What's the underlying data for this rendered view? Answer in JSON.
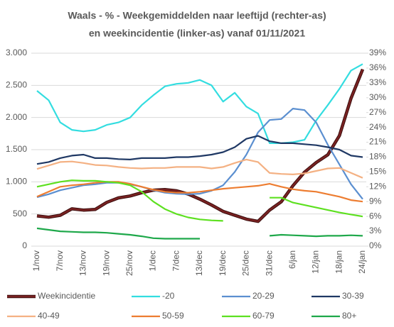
{
  "chart_data": {
    "type": "line",
    "title": [
      "Waals - % - Weekgemiddelden naar leeftijd (rechter-as)",
      "en weekincidentie  (linker-as) vanaf 01/11/2021"
    ],
    "categories": [
      "1/nov",
      null,
      "7/nov",
      null,
      "13/nov",
      null,
      "19/nov",
      null,
      "25/nov",
      null,
      "1/dec",
      null,
      "7/dec",
      null,
      "13/dec",
      null,
      "19/dec",
      null,
      "25/dec",
      null,
      "31/dec",
      null,
      "6/jan",
      null,
      "12/jan",
      null,
      "18/jan",
      null,
      "24/jan"
    ],
    "ylim": [
      0,
      3000
    ],
    "yticks": [
      0,
      500,
      {
        "value": 1000,
        "label": "1.000"
      },
      {
        "value": 1500,
        "label": "1.500"
      },
      {
        "value": 2000,
        "label": "2.000"
      },
      {
        "value": 2500,
        "label": "2.500"
      },
      {
        "value": 3000,
        "label": "3.000"
      }
    ],
    "y2lim": [
      0,
      39
    ],
    "y2ticks": [
      {
        "value": 0,
        "label": "0%"
      },
      {
        "value": 3,
        "label": "3%"
      },
      {
        "value": 6,
        "label": "6%"
      },
      {
        "value": 9,
        "label": "9%"
      },
      {
        "value": 12,
        "label": "12%"
      },
      {
        "value": 15,
        "label": "15%"
      },
      {
        "value": 18,
        "label": "18%"
      },
      {
        "value": 21,
        "label": "21%"
      },
      {
        "value": 24,
        "label": "24%"
      },
      {
        "value": 27,
        "label": "27%"
      },
      {
        "value": 30,
        "label": "30%"
      },
      {
        "value": 33,
        "label": "33%"
      },
      {
        "value": 36,
        "label": "36%"
      },
      {
        "value": 39,
        "label": "39%"
      }
    ],
    "grid": true,
    "legend": "bottom",
    "series": [
      {
        "name": "Weekincidentie",
        "color": "#7a2222",
        "values": [
          470,
          450,
          480,
          580,
          560,
          570,
          680,
          750,
          780,
          830,
          870,
          880,
          860,
          810,
          730,
          640,
          540,
          480,
          420,
          385,
          560,
          690,
          940,
          1150,
          1300,
          1420,
          1720,
          2300,
          2750
        ]
      },
      {
        "name": "-20",
        "color": "#33dde0",
        "axis": "y2",
        "values": [
          31.4,
          29.5,
          25,
          23.5,
          23.2,
          23.5,
          24.5,
          25,
          26,
          28.5,
          30.5,
          32.3,
          32.8,
          33,
          33.6,
          32.5,
          29.2,
          31,
          28.2,
          26.8,
          20.8,
          20.8,
          21,
          21.5,
          25.4,
          28.5,
          31.8,
          35.5,
          36.8
        ]
      },
      {
        "name": "20-29",
        "color": "#5b8fd0",
        "axis": "y2",
        "values": [
          9.9,
          10.5,
          11.3,
          11.8,
          12.3,
          12.5,
          12.8,
          12.8,
          12.5,
          12,
          11.3,
          10.8,
          10.6,
          10.5,
          10.6,
          11.2,
          12.3,
          15,
          18.5,
          23,
          25.5,
          25.7,
          27.8,
          27.5,
          25,
          20.5,
          16.5,
          12.5,
          9.5
        ]
      },
      {
        "name": "30-39",
        "color": "#1f3864",
        "axis": "y2",
        "values": [
          16.6,
          17,
          17.8,
          18.3,
          18.5,
          17.8,
          17.8,
          17.6,
          17.5,
          17.8,
          17.8,
          17.8,
          18,
          18,
          18.2,
          18.5,
          19,
          20,
          21.7,
          22.3,
          21.2,
          20.8,
          20.8,
          20.6,
          20.4,
          20,
          19.5,
          18.3,
          18
        ]
      },
      {
        "name": "40-49",
        "color": "#f4b183",
        "axis": "y2",
        "values": [
          15.6,
          16.3,
          17,
          17.1,
          16.8,
          16.4,
          16.3,
          16,
          15.8,
          15.7,
          15.8,
          15.8,
          16,
          16,
          16,
          15.7,
          16,
          16.8,
          17.5,
          17,
          14.8,
          14.6,
          14.5,
          14.7,
          15.2,
          15.7,
          15.8,
          14.8,
          13.8
        ]
      },
      {
        "name": "50-59",
        "color": "#ed7d31",
        "axis": "y2",
        "values": [
          10,
          11,
          12,
          12.3,
          12.5,
          12.8,
          13,
          13,
          12.6,
          12,
          11.4,
          11,
          10.8,
          10.8,
          11,
          11.3,
          11.6,
          11.8,
          12,
          12.2,
          12.6,
          12,
          11.5,
          11.2,
          11,
          10.5,
          10,
          9.3,
          9
        ]
      },
      {
        "name": "60-79",
        "color": "#5de020",
        "axis": "y2",
        "values": [
          12,
          12.5,
          13,
          13.3,
          13.2,
          13.2,
          13,
          12.8,
          12.3,
          11,
          9,
          7.5,
          6.5,
          5.8,
          5.4,
          5.2,
          5.1,
          null,
          null,
          null,
          9.8,
          9.8,
          8.8,
          8.3,
          7.8,
          7.3,
          6.8,
          6.4,
          6
        ]
      },
      {
        "name": "80+",
        "color": "#1ea84a",
        "axis": "y2",
        "values": [
          3.6,
          3.3,
          3,
          2.9,
          2.8,
          2.8,
          2.7,
          2.5,
          2.3,
          2,
          1.6,
          1.5,
          1.5,
          1.5,
          1.5,
          null,
          null,
          null,
          null,
          null,
          2.1,
          2.3,
          2.2,
          2.1,
          2,
          2.1,
          2.1,
          2.2,
          2.1
        ]
      }
    ]
  }
}
